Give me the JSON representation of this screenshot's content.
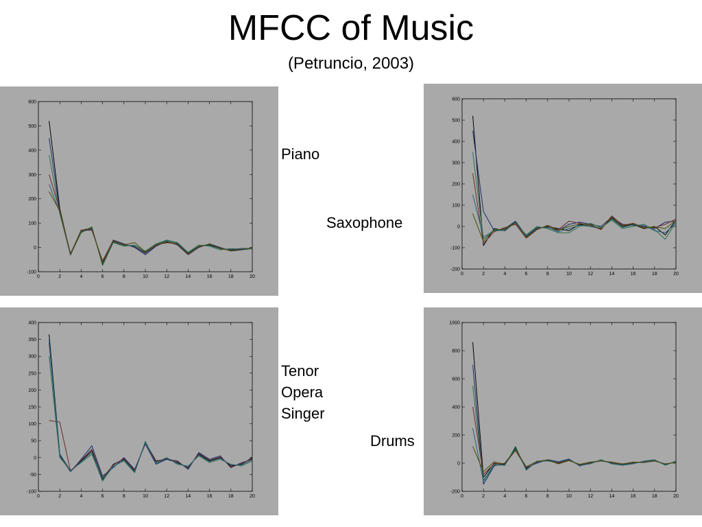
{
  "slide": {
    "title": "MFCC of Music",
    "subtitle": "(Petruncio, 2003)"
  },
  "labels": {
    "piano": "Piano",
    "saxophone": "Saxophone",
    "tenor_line1": "Tenor",
    "tenor_line2": "Opera",
    "tenor_line3": "Singer",
    "drums": "Drums"
  },
  "colors": {
    "panel_bg": "#a9a9a9",
    "plot_bg": "#a9a9a9",
    "axis": "#000000",
    "series_palette": [
      "#000000",
      "#1a2a6c",
      "#2c6e49",
      "#6b2a2a",
      "#1f5f7a",
      "#4a4a00",
      "#3a3a3a",
      "#5a1a5a"
    ]
  },
  "chart_data": [
    {
      "id": "piano",
      "type": "line",
      "x": [
        1,
        2,
        3,
        4,
        5,
        6,
        7,
        8,
        9,
        10,
        11,
        12,
        13,
        14,
        15,
        16,
        17,
        18,
        19,
        20
      ],
      "xlim": [
        0,
        20
      ],
      "ylim": [
        -100,
        600
      ],
      "xticks": [
        0,
        2,
        4,
        6,
        8,
        10,
        12,
        14,
        16,
        18,
        20
      ],
      "yticks": [
        -100,
        0,
        100,
        200,
        300,
        400,
        500,
        600
      ],
      "grid": false,
      "series": [
        {
          "values": [
            520,
            160,
            -30,
            70,
            80,
            -70,
            25,
            10,
            5,
            -20,
            10,
            20,
            15,
            -25,
            5,
            10,
            -5,
            -10,
            -5,
            -5
          ]
        },
        {
          "values": [
            450,
            150,
            -25,
            65,
            75,
            -60,
            30,
            15,
            0,
            -30,
            5,
            25,
            10,
            -30,
            0,
            15,
            0,
            -15,
            -10,
            -5
          ]
        },
        {
          "values": [
            380,
            140,
            -30,
            60,
            85,
            -75,
            20,
            5,
            10,
            -15,
            15,
            30,
            20,
            -20,
            10,
            5,
            -10,
            -5,
            -8,
            -2
          ]
        },
        {
          "values": [
            300,
            155,
            -28,
            72,
            70,
            -55,
            28,
            12,
            3,
            -25,
            8,
            22,
            12,
            -28,
            2,
            12,
            -2,
            -12,
            -6,
            -4
          ]
        },
        {
          "values": [
            260,
            145,
            -32,
            68,
            78,
            -65,
            22,
            8,
            6,
            -22,
            12,
            28,
            18,
            -22,
            6,
            8,
            -6,
            -8,
            -4,
            -6
          ]
        },
        {
          "values": [
            230,
            150,
            -30,
            66,
            82,
            -68,
            26,
            10,
            20,
            -18,
            10,
            24,
            14,
            -26,
            4,
            14,
            -4,
            -14,
            -8,
            -3
          ]
        }
      ]
    },
    {
      "id": "saxophone",
      "type": "line",
      "x": [
        1,
        2,
        3,
        4,
        5,
        6,
        7,
        8,
        9,
        10,
        11,
        12,
        13,
        14,
        15,
        16,
        17,
        18,
        19,
        20
      ],
      "xlim": [
        0,
        20
      ],
      "ylim": [
        -200,
        600
      ],
      "xticks": [
        0,
        2,
        4,
        6,
        8,
        10,
        12,
        14,
        16,
        18,
        20
      ],
      "yticks": [
        -200,
        -100,
        0,
        100,
        200,
        300,
        400,
        500,
        600
      ],
      "grid": false,
      "series": [
        {
          "values": [
            520,
            -90,
            -10,
            -20,
            20,
            -50,
            -10,
            0,
            -10,
            -20,
            10,
            0,
            -10,
            40,
            0,
            10,
            -10,
            0,
            -40,
            30
          ]
        },
        {
          "values": [
            450,
            70,
            -20,
            -10,
            25,
            -45,
            -5,
            -5,
            -20,
            10,
            20,
            10,
            0,
            45,
            10,
            5,
            0,
            -10,
            20,
            25
          ]
        },
        {
          "values": [
            350,
            -60,
            -15,
            -15,
            15,
            -40,
            0,
            -10,
            -30,
            -30,
            0,
            15,
            -5,
            30,
            -10,
            0,
            10,
            -15,
            -60,
            20
          ]
        },
        {
          "values": [
            250,
            -80,
            -25,
            -5,
            10,
            -55,
            -15,
            5,
            -15,
            25,
            15,
            5,
            -15,
            50,
            5,
            15,
            -5,
            -5,
            10,
            35
          ]
        },
        {
          "values": [
            150,
            -50,
            -20,
            -18,
            22,
            -48,
            -8,
            -3,
            -25,
            -10,
            5,
            0,
            -8,
            35,
            -5,
            8,
            5,
            -20,
            -30,
            15
          ]
        },
        {
          "values": [
            60,
            -70,
            -18,
            -12,
            18,
            -52,
            -12,
            2,
            -18,
            0,
            12,
            8,
            -12,
            42,
            2,
            12,
            -8,
            -2,
            -10,
            28
          ]
        }
      ]
    },
    {
      "id": "tenor-opera-singer",
      "type": "line",
      "x": [
        1,
        2,
        3,
        4,
        5,
        6,
        7,
        8,
        9,
        10,
        11,
        12,
        13,
        14,
        15,
        16,
        17,
        18,
        19,
        20
      ],
      "xlim": [
        0,
        20
      ],
      "ylim": [
        -100,
        400
      ],
      "xticks": [
        0,
        2,
        4,
        6,
        8,
        10,
        12,
        14,
        16,
        18,
        20
      ],
      "yticks": [
        -100,
        -50,
        0,
        50,
        100,
        150,
        200,
        250,
        300,
        350,
        400
      ],
      "grid": false,
      "series": [
        {
          "values": [
            365,
            10,
            -40,
            -10,
            20,
            -65,
            -20,
            -5,
            -40,
            45,
            -10,
            -5,
            -15,
            -30,
            10,
            -10,
            0,
            -25,
            -20,
            0
          ]
        },
        {
          "values": [
            340,
            5,
            -42,
            -5,
            35,
            -55,
            -30,
            0,
            -35,
            40,
            -20,
            -5,
            -10,
            -35,
            15,
            -5,
            5,
            -30,
            -15,
            -5
          ]
        },
        {
          "values": [
            300,
            0,
            -38,
            -15,
            10,
            -70,
            -25,
            -10,
            -45,
            48,
            -15,
            0,
            -20,
            -25,
            5,
            -15,
            -5,
            -20,
            -25,
            -10
          ]
        },
        {
          "values": [
            110,
            105,
            -40,
            -8,
            25,
            -60,
            -22,
            -3,
            -38,
            42,
            -12,
            -3,
            -12,
            -32,
            12,
            -8,
            2,
            -28,
            -18,
            -3
          ]
        },
        {
          "values": [
            350,
            8,
            -41,
            -12,
            15,
            -62,
            -28,
            -7,
            -42,
            44,
            -18,
            -2,
            -17,
            -28,
            8,
            -12,
            -2,
            -22,
            -22,
            -7
          ]
        }
      ]
    },
    {
      "id": "drums",
      "type": "line",
      "x": [
        1,
        2,
        3,
        4,
        5,
        6,
        7,
        8,
        9,
        10,
        11,
        12,
        13,
        14,
        15,
        16,
        17,
        18,
        19,
        20
      ],
      "xlim": [
        0,
        20
      ],
      "ylim": [
        -200,
        1000
      ],
      "xticks": [
        0,
        2,
        4,
        6,
        8,
        10,
        12,
        14,
        16,
        18,
        20
      ],
      "yticks": [
        -200,
        0,
        200,
        400,
        600,
        800,
        1000
      ],
      "grid": false,
      "series": [
        {
          "values": [
            860,
            -100,
            0,
            -10,
            110,
            -40,
            10,
            20,
            0,
            20,
            -10,
            0,
            20,
            0,
            -10,
            0,
            10,
            20,
            -10,
            10
          ]
        },
        {
          "values": [
            700,
            -150,
            -20,
            0,
            100,
            -30,
            0,
            25,
            10,
            30,
            -20,
            5,
            15,
            5,
            -5,
            5,
            5,
            15,
            -5,
            5
          ]
        },
        {
          "values": [
            550,
            -120,
            -10,
            -15,
            120,
            -50,
            15,
            15,
            5,
            25,
            -15,
            -5,
            25,
            -5,
            -15,
            -5,
            15,
            25,
            -15,
            15
          ]
        },
        {
          "values": [
            400,
            -80,
            -5,
            -5,
            90,
            -35,
            5,
            22,
            2,
            22,
            -12,
            2,
            18,
            2,
            -8,
            2,
            8,
            18,
            -8,
            8
          ]
        },
        {
          "values": [
            250,
            -130,
            -15,
            -12,
            105,
            -45,
            8,
            18,
            8,
            28,
            -18,
            -2,
            22,
            -2,
            -12,
            -2,
            12,
            22,
            -12,
            12
          ]
        },
        {
          "values": [
            120,
            -60,
            10,
            -8,
            95,
            -25,
            12,
            24,
            -5,
            18,
            -8,
            8,
            16,
            8,
            -6,
            8,
            6,
            16,
            -6,
            6
          ]
        }
      ]
    }
  ]
}
